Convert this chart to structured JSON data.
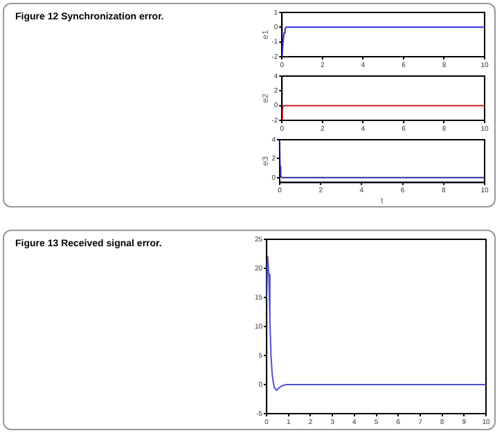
{
  "chart_data": [
    {
      "type": "line",
      "annotations": [
        "Figure 12  Synchronization error."
      ],
      "ylabel": "e1",
      "x": [
        0,
        0.05,
        0.1,
        0.15,
        0.2,
        0.3,
        0.5,
        1,
        10
      ],
      "series": [
        {
          "color": "#2d2dd6",
          "values": [
            -2,
            -1,
            -0.4,
            -0.1,
            0,
            0,
            0,
            0,
            0
          ]
        }
      ],
      "xlim": [
        0,
        10
      ],
      "xticks": [
        0,
        2,
        4,
        6,
        8,
        10
      ],
      "ylim": [
        -2,
        1
      ],
      "yticks": [
        -2,
        -1,
        0,
        1
      ],
      "grid": false,
      "legend": false
    },
    {
      "type": "line",
      "ylabel": "e2",
      "x": [
        0,
        0.02,
        0.05,
        0.1,
        0.2,
        10
      ],
      "series": [
        {
          "color": "#d62020",
          "values": [
            -2,
            -0.6,
            -0.1,
            0,
            0,
            0
          ]
        }
      ],
      "xlim": [
        0,
        10
      ],
      "xticks": [
        0,
        2,
        4,
        6,
        8,
        10
      ],
      "ylim": [
        -2,
        4
      ],
      "yticks": [
        -2,
        0,
        2,
        4
      ],
      "grid": false,
      "legend": false
    },
    {
      "type": "line",
      "ylabel": "e3",
      "xlabel": "t",
      "x": [
        0,
        0.02,
        0.05,
        0.1,
        0.2,
        10
      ],
      "series": [
        {
          "color": "#2d2da0",
          "values": [
            4,
            1.2,
            0.2,
            0,
            0,
            0
          ]
        }
      ],
      "xlim": [
        0,
        10
      ],
      "xticks": [
        0,
        2,
        4,
        6,
        8,
        10
      ],
      "ylim": [
        -0.5,
        4
      ],
      "yticks": [
        0,
        2,
        4
      ],
      "grid": false,
      "legend": false
    },
    {
      "type": "line",
      "annotations": [
        "Figure 13  Received signal error."
      ],
      "x": [
        0,
        0.05,
        0.1,
        0.15,
        0.2,
        0.25,
        0.3,
        0.35,
        0.45,
        0.55,
        0.7,
        0.9,
        1.2,
        10
      ],
      "series": [
        {
          "color": "#5050d8",
          "values": [
            15,
            22,
            19,
            11,
            5,
            2,
            0.5,
            -0.5,
            -1,
            -0.6,
            -0.2,
            0,
            0,
            0
          ]
        }
      ],
      "xlim": [
        0,
        10
      ],
      "xticks": [
        0,
        1,
        2,
        3,
        4,
        5,
        6,
        7,
        8,
        9,
        10
      ],
      "ylim": [
        -5,
        25
      ],
      "yticks": [
        -5,
        0,
        5,
        10,
        15,
        20,
        25
      ],
      "grid": false,
      "legend": false
    }
  ]
}
